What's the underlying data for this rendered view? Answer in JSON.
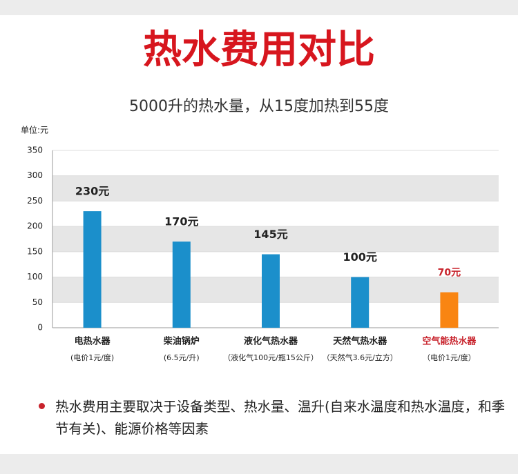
{
  "chart_data": {
    "type": "bar",
    "title": "热水费用对比",
    "subtitle": "5000升的热水量，从15度加热到55度",
    "y_label": "单位:元",
    "categories": [
      "电热水器",
      "柴油锅炉",
      "液化气热水器",
      "天然气热水器",
      "空气能热水器"
    ],
    "category_notes": [
      "(电价1元/度)",
      "(6.5元/升)",
      "（液化气100元/瓶15公斤）",
      "（天然气3.6元/立方）",
      "（电价1元/度）"
    ],
    "values": [
      230,
      170,
      145,
      100,
      70
    ],
    "value_labels": [
      "230元",
      "170元",
      "145元",
      "100元",
      "70元"
    ],
    "colors": [
      "#1b8fcb",
      "#1b8fcb",
      "#1b8fcb",
      "#1b8fcb",
      "#f98512"
    ],
    "label_colors": [
      "#222222",
      "#222222",
      "#222222",
      "#222222",
      "#c8232c"
    ],
    "ylim": [
      0,
      350
    ],
    "yticks": [
      0,
      50,
      100,
      150,
      200,
      250,
      300,
      350
    ],
    "grid": true,
    "footnote": "热水费用主要取决于设备类型、热水量、温升(自来水温度和热水温度，和季节有关)、能源价格等因素"
  }
}
